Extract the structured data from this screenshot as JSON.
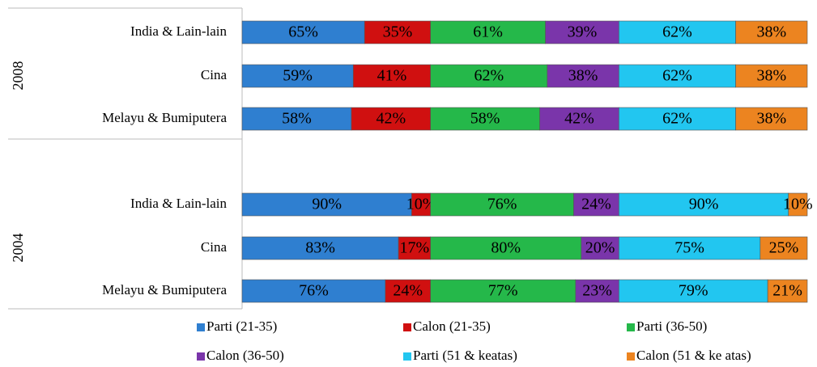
{
  "chart_data": {
    "type": "stacked-bar",
    "orientation": "horizontal",
    "groups": [
      {
        "label": "2008",
        "categories": [
          "India & Lain-lain",
          "Cina",
          "Melayu & Bumiputera"
        ]
      },
      {
        "label": "2004",
        "categories": [
          "India & Lain-lain",
          "Cina",
          "Melayu & Bumiputera"
        ]
      }
    ],
    "xlim": [
      0,
      300
    ],
    "series": [
      {
        "name": "Parti (21-35)",
        "color": "#2f7fd0",
        "values": [
          65,
          59,
          58,
          90,
          83,
          76
        ],
        "value_labels": [
          "65%",
          "59%",
          "58%",
          "90%",
          "83%",
          "76%"
        ]
      },
      {
        "name": "Calon (21-35)",
        "color": "#d01010",
        "values": [
          35,
          41,
          42,
          10,
          17,
          24
        ],
        "value_labels": [
          "35%",
          "41%",
          "42%",
          "10%",
          "17%",
          "24%"
        ]
      },
      {
        "name": "Parti (36-50)",
        "color": "#25b84a",
        "values": [
          61,
          62,
          58,
          76,
          80,
          77
        ],
        "value_labels": [
          "61%",
          "62%",
          "58%",
          "76%",
          "80%",
          "77%"
        ]
      },
      {
        "name": "Calon (36-50)",
        "color": "#7a35aa",
        "values": [
          39,
          38,
          42,
          24,
          20,
          23
        ],
        "value_labels": [
          "39%",
          "38%",
          "42%",
          "24%",
          "20%",
          "23%"
        ]
      },
      {
        "name": "Parti (51 & keatas)",
        "color": "#22c6f0",
        "values": [
          62,
          62,
          62,
          90,
          75,
          79
        ],
        "value_labels": [
          "62%",
          "62%",
          "62%",
          "90%",
          "75%",
          "79%"
        ]
      },
      {
        "name": "Calon (51 & ke atas)",
        "color": "#ec8420",
        "values": [
          38,
          38,
          38,
          10,
          25,
          21
        ],
        "value_labels": [
          "38%",
          "38%",
          "38%",
          "10%",
          "25%",
          "21%"
        ]
      }
    ],
    "legend": "bottom"
  }
}
